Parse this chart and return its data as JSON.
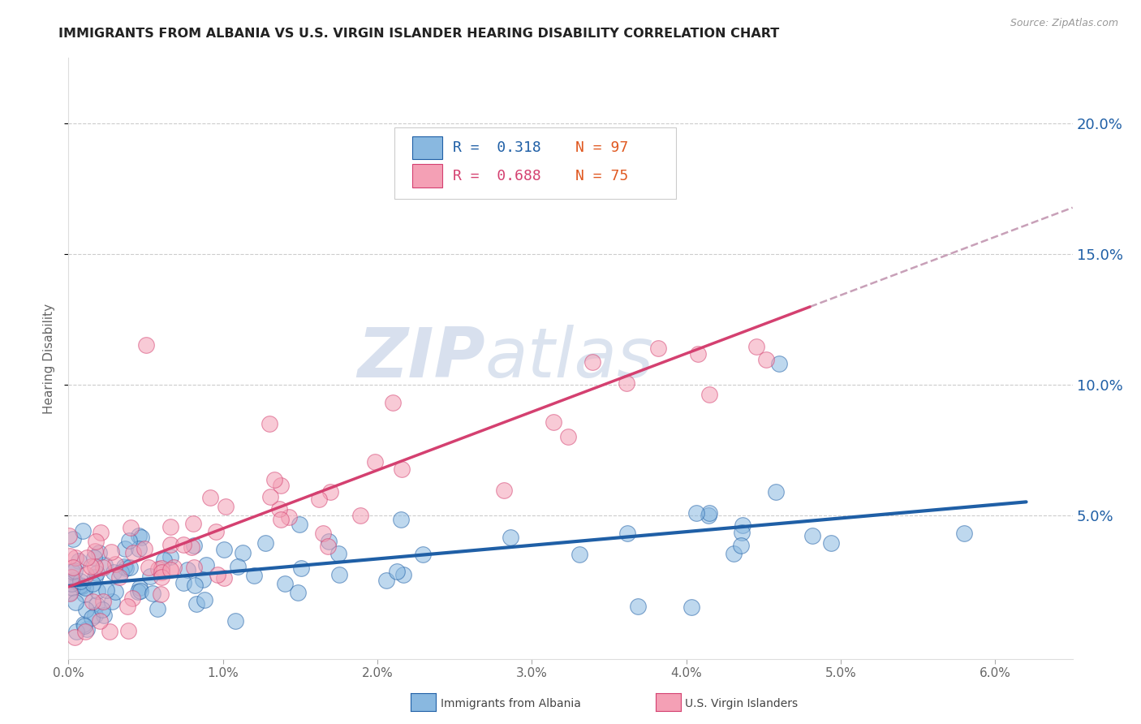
{
  "title": "IMMIGRANTS FROM ALBANIA VS U.S. VIRGIN ISLANDER HEARING DISABILITY CORRELATION CHART",
  "source_text": "Source: ZipAtlas.com",
  "ylabel": "Hearing Disability",
  "xlim": [
    0.0,
    0.065
  ],
  "ylim": [
    -0.005,
    0.225
  ],
  "xticks": [
    0.0,
    0.01,
    0.02,
    0.03,
    0.04,
    0.05,
    0.06
  ],
  "xtick_labels": [
    "0.0%",
    "1.0%",
    "2.0%",
    "3.0%",
    "4.0%",
    "5.0%",
    "6.0%"
  ],
  "yticks": [
    0.05,
    0.1,
    0.15,
    0.2
  ],
  "ytick_labels": [
    "5.0%",
    "10.0%",
    "15.0%",
    "20.0%"
  ],
  "legend_r1": "R =  0.318",
  "legend_n1": "N = 97",
  "legend_r2": "R =  0.688",
  "legend_n2": "N = 75",
  "color_blue": "#89B8E0",
  "color_pink": "#F4A0B5",
  "color_blue_line": "#1F5FA6",
  "color_pink_line": "#D44070",
  "color_dashed": "#C8A0B8",
  "watermark_zip": "ZIP",
  "watermark_atlas": "atlas",
  "title_fontsize": 11.5,
  "axis_label_fontsize": 10,
  "tick_fontsize": 11,
  "legend_fontsize": 13
}
